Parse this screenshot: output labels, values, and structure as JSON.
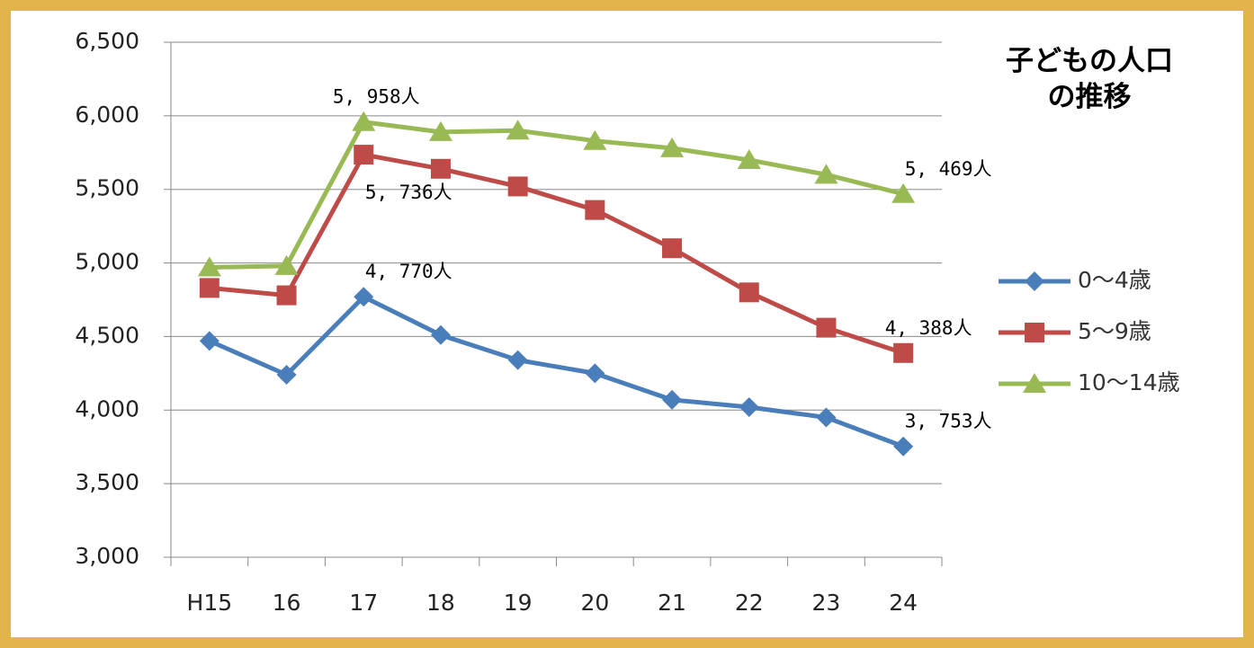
{
  "chart_data": {
    "type": "line",
    "title": "子どもの人口の推移",
    "categories": [
      "H15",
      "16",
      "17",
      "18",
      "19",
      "20",
      "21",
      "22",
      "23",
      "24"
    ],
    "series": [
      {
        "name": "0～4歳",
        "color": "#4a7ebb",
        "marker": "diamond",
        "values": [
          4470,
          4240,
          4770,
          4510,
          4340,
          4250,
          4070,
          4020,
          3950,
          3753
        ],
        "value_labels": [
          null,
          null,
          "4, 770人",
          null,
          null,
          null,
          null,
          null,
          null,
          "3, 753人"
        ]
      },
      {
        "name": "5～9歳",
        "color": "#be4b48",
        "marker": "square",
        "values": [
          4830,
          4780,
          5736,
          5640,
          5520,
          5360,
          5100,
          4800,
          4560,
          4388
        ],
        "value_labels": [
          null,
          null,
          "5, 736人",
          null,
          null,
          null,
          null,
          null,
          null,
          "4, 388人"
        ]
      },
      {
        "name": "10～14歳",
        "color": "#98b954",
        "marker": "triangle",
        "values": [
          4970,
          4980,
          5958,
          5890,
          5900,
          5830,
          5780,
          5700,
          5600,
          5469
        ],
        "value_labels": [
          null,
          null,
          "5, 958人",
          null,
          null,
          null,
          null,
          null,
          null,
          "5, 469人"
        ]
      }
    ],
    "ylim": [
      3000,
      6500
    ],
    "yticks": [
      {
        "value": 3000,
        "label": "3,000"
      },
      {
        "value": 3500,
        "label": "3,500"
      },
      {
        "value": 4000,
        "label": "4,000"
      },
      {
        "value": 4500,
        "label": "4,500"
      },
      {
        "value": 5000,
        "label": "5,000"
      },
      {
        "value": 5500,
        "label": "5,500"
      },
      {
        "value": 6000,
        "label": "6,000"
      },
      {
        "value": 6500,
        "label": "6,500"
      }
    ],
    "grid": true,
    "legend": "right"
  }
}
